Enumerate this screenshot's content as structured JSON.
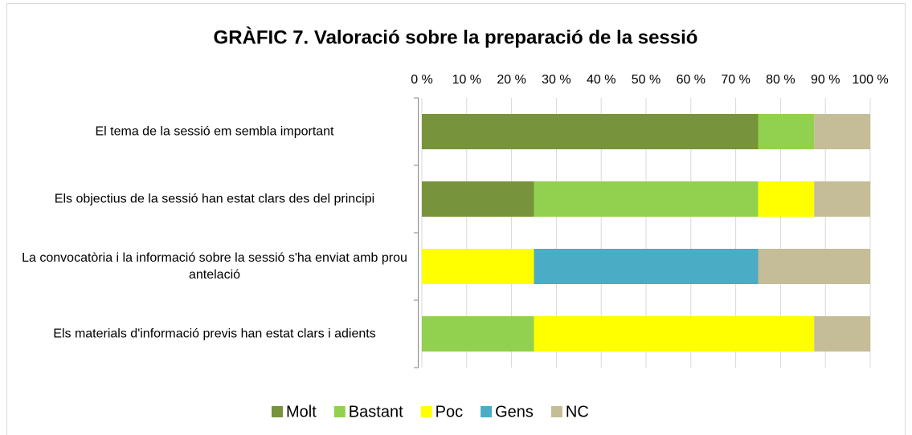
{
  "chart_data": {
    "type": "stacked-bar-horizontal",
    "title": "GRÀFIC 7. Valoració sobre la preparació de la sessió",
    "categories": [
      "El tema de la sessió em sembla important",
      "Els objectius de la sessió han estat clars des del principi",
      "La convocatòria i la informació sobre la sessió s'ha enviat amb prou antelació",
      "Els materials d'informació previs han estat clars i adients"
    ],
    "series": [
      {
        "name": "Molt",
        "color": "#77933c",
        "values": [
          75,
          25,
          0,
          0
        ]
      },
      {
        "name": "Bastant",
        "color": "#92d050",
        "values": [
          12.5,
          50,
          0,
          25
        ]
      },
      {
        "name": "Poc",
        "color": "#ffff00",
        "values": [
          0,
          12.5,
          25,
          62.5
        ]
      },
      {
        "name": "Gens",
        "color": "#4bacc6",
        "values": [
          0,
          0,
          50,
          0
        ]
      },
      {
        "name": "NC",
        "color": "#c4bd97",
        "values": [
          12.5,
          12.5,
          25,
          12.5
        ]
      }
    ],
    "xlim": [
      0,
      100
    ],
    "xticks": [
      {
        "value": 0,
        "label": "0 %"
      },
      {
        "value": 10,
        "label": "10 %"
      },
      {
        "value": 20,
        "label": "20 %"
      },
      {
        "value": 30,
        "label": "30 %"
      },
      {
        "value": 40,
        "label": "40 %"
      },
      {
        "value": 50,
        "label": "50 %"
      },
      {
        "value": 60,
        "label": "60 %"
      },
      {
        "value": 70,
        "label": "70 %"
      },
      {
        "value": 80,
        "label": "80 %"
      },
      {
        "value": 90,
        "label": "90 %"
      },
      {
        "value": 100,
        "label": "100 %"
      }
    ],
    "grid": true,
    "legend": "bottom"
  }
}
